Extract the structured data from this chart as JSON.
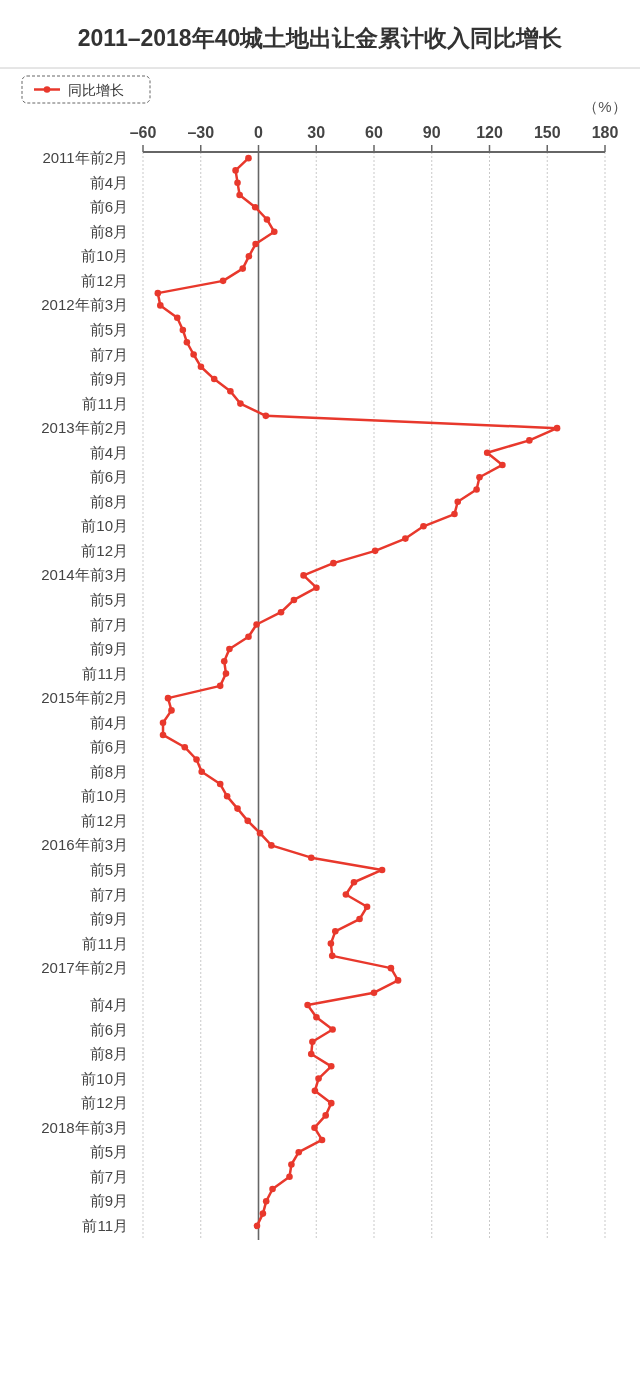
{
  "chart_data": {
    "type": "line",
    "orientation": "horizontal",
    "title": "2011–2018年40城土地出让金累计收入同比增长",
    "xlabel": "（%）",
    "categories": [
      "2011年前2月",
      null,
      "前4月",
      null,
      "前6月",
      null,
      "前8月",
      null,
      "前10月",
      null,
      "前12月",
      null,
      "2012年前3月",
      null,
      "前5月",
      null,
      "前7月",
      null,
      "前9月",
      null,
      "前11月",
      null,
      "2013年前2月",
      null,
      "前4月",
      null,
      "前6月",
      null,
      "前8月",
      null,
      "前10月",
      null,
      "前12月",
      null,
      "2014年前3月",
      null,
      "前5月",
      null,
      "前7月",
      null,
      "前9月",
      null,
      "前11月",
      null,
      "2015年前2月",
      null,
      "前4月",
      null,
      "前6月",
      null,
      "前8月",
      null,
      "前10月",
      null,
      "前12月",
      null,
      "2016年前3月",
      null,
      "前5月",
      null,
      "前7月",
      null,
      "前9月",
      null,
      "前11月",
      null,
      "2017年前2月",
      null,
      null,
      "前4月",
      null,
      "前6月",
      null,
      "前8月",
      null,
      "前10月",
      null,
      "前12月",
      null,
      "2018年前3月",
      null,
      "前5月",
      null,
      "前7月",
      null,
      "前9月",
      null,
      "前11月"
    ],
    "series": [
      {
        "name": "同比增长",
        "color": "#e8382c",
        "values": [
          -5.2,
          -11.9,
          -10.9,
          -9.8,
          -1.7,
          4.4,
          8.2,
          -1.5,
          -5.0,
          -8.2,
          -18.4,
          -52.3,
          -51.0,
          -42.2,
          -39.3,
          -37.2,
          -33.7,
          -29.9,
          -23.0,
          -14.6,
          -9.4,
          3.8,
          155.1,
          140.7,
          118.8,
          126.7,
          114.8,
          113.3,
          103.5,
          101.8,
          85.7,
          76.3,
          60.6,
          38.9,
          23.4,
          30.1,
          18.4,
          11.7,
          -1.0,
          -5.2,
          -15.1,
          -17.8,
          -16.9,
          -19.9,
          -47.0,
          -45.2,
          -49.6,
          -49.6,
          -38.3,
          -32.2,
          -29.5,
          -19.9,
          -16.3,
          -10.9,
          -5.6,
          0.8,
          6.7,
          27.4,
          64.2,
          49.6,
          45.4,
          56.4,
          52.5,
          39.9,
          37.6,
          38.3,
          68.8,
          72.5,
          60.0,
          25.5,
          30.1,
          38.5,
          28.0,
          27.4,
          37.8,
          31.2,
          29.3,
          37.8,
          34.9,
          29.1,
          33.0,
          20.9,
          17.1,
          16.1,
          7.3,
          4.0,
          2.3,
          -0.8
        ]
      }
    ],
    "xlim": [
      -60,
      180
    ],
    "xticks": [
      {
        "value": -60,
        "label": "–60"
      },
      {
        "value": -30,
        "label": "–30"
      },
      0,
      30,
      60,
      90,
      120,
      150,
      180
    ],
    "grid": "x",
    "legend": "top left",
    "marker": "circle",
    "line_style": "solid",
    "ref_lines": [
      {
        "axis": "x",
        "value": 0,
        "color": "#666666"
      }
    ]
  }
}
